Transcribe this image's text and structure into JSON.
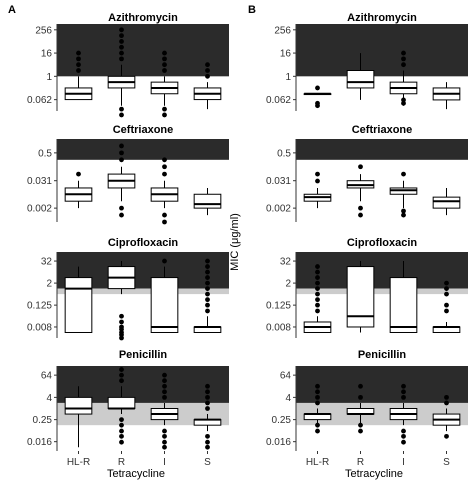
{
  "figure": {
    "ylabel": "MIC (μg/ml)",
    "xlabel": "Tetracycline",
    "panel_labels": [
      "A",
      "B"
    ],
    "colors": {
      "resistant_band": "#2b2b2b",
      "intermediate_band": "#cccccc",
      "box_fill": "#ffffff",
      "stroke": "#000000",
      "axis_text": "#333333"
    }
  },
  "chart_data": [
    {
      "panel": "A",
      "type": "box",
      "title": "Azithromycin",
      "scale": "log2",
      "ylim": [
        0.016,
        512
      ],
      "ticks": [
        256,
        16,
        1,
        0.062
      ],
      "tick_labels": [
        "256",
        "16",
        "1",
        "0.062"
      ],
      "resistant_min": 1,
      "intermediate_min": null,
      "categories": [
        "HL-R",
        "R",
        "I",
        "S"
      ],
      "boxes": [
        {
          "whisker_low": 0.0625,
          "q1": 0.0625,
          "median": 0.125,
          "q3": 0.25,
          "whisker_high": 1,
          "outliers": [
            2,
            4,
            8,
            16
          ]
        },
        {
          "whisker_low": 0.03,
          "q1": 0.25,
          "median": 0.5,
          "q3": 1,
          "whisker_high": 4,
          "outliers": [
            0.01,
            0.02,
            8,
            16,
            32,
            64,
            128,
            256
          ]
        },
        {
          "whisker_low": 0.03,
          "q1": 0.125,
          "median": 0.25,
          "q3": 0.5,
          "whisker_high": 1,
          "outliers": [
            0.01,
            0.02,
            2,
            4,
            8,
            16
          ]
        },
        {
          "whisker_low": 0.02,
          "q1": 0.0625,
          "median": 0.125,
          "q3": 0.25,
          "whisker_high": 0.5,
          "outliers": [
            1,
            2,
            4
          ]
        }
      ]
    },
    {
      "panel": "B",
      "type": "box",
      "title": "Azithromycin",
      "scale": "log2",
      "ylim": [
        0.016,
        512
      ],
      "ticks": [
        256,
        16,
        1,
        0.062
      ],
      "tick_labels": [
        "256",
        "16",
        "1",
        "0.062"
      ],
      "resistant_min": 1,
      "intermediate_min": null,
      "categories": [
        "HL-R",
        "R",
        "I",
        "S"
      ],
      "boxes": [
        {
          "whisker_low": 0.125,
          "q1": 0.125,
          "median": 0.125,
          "q3": 0.125,
          "whisker_high": 0.125,
          "outliers": [
            0.03,
            0.04,
            0.25
          ]
        },
        {
          "whisker_low": 0.06,
          "q1": 0.25,
          "median": 0.5,
          "q3": 2,
          "whisker_high": 16,
          "outliers": []
        },
        {
          "whisker_low": 0.03,
          "q1": 0.125,
          "median": 0.25,
          "q3": 0.5,
          "whisker_high": 2,
          "outliers": [
            0.04,
            0.06,
            4,
            8,
            16
          ]
        },
        {
          "whisker_low": 0.02,
          "q1": 0.06,
          "median": 0.125,
          "q3": 0.25,
          "whisker_high": 0.5,
          "outliers": []
        }
      ]
    },
    {
      "panel": "A",
      "type": "box",
      "title": "Ceftriaxone",
      "scale": "log2",
      "ylim": [
        0.0005,
        2
      ],
      "ticks": [
        0.5,
        0.031,
        0.002
      ],
      "tick_labels": [
        "0.5",
        "0.031",
        "0.002"
      ],
      "resistant_min": 0.25,
      "intermediate_min": null,
      "categories": [
        "HL-R",
        "R",
        "I",
        "S"
      ],
      "boxes": [
        {
          "whisker_low": 0.002,
          "q1": 0.004,
          "median": 0.008,
          "q3": 0.015,
          "whisker_high": 0.031,
          "outliers": [
            0.06
          ]
        },
        {
          "whisker_low": 0.004,
          "q1": 0.015,
          "median": 0.031,
          "q3": 0.06,
          "whisker_high": 0.125,
          "outliers": [
            0.001,
            0.002,
            0.25,
            0.5,
            1
          ]
        },
        {
          "whisker_low": 0.002,
          "q1": 0.004,
          "median": 0.008,
          "q3": 0.015,
          "whisker_high": 0.031,
          "outliers": [
            0.0005,
            0.001,
            0.06,
            0.125,
            0.25
          ]
        },
        {
          "whisker_low": 0.001,
          "q1": 0.002,
          "median": 0.003,
          "q3": 0.008,
          "whisker_high": 0.015,
          "outliers": []
        }
      ]
    },
    {
      "panel": "B",
      "type": "box",
      "title": "Ceftriaxone",
      "scale": "log2",
      "ylim": [
        0.0005,
        2
      ],
      "ticks": [
        0.5,
        0.031,
        0.002
      ],
      "tick_labels": [
        "0.5",
        "0.031",
        "0.002"
      ],
      "resistant_min": 0.25,
      "intermediate_min": null,
      "categories": [
        "HL-R",
        "R",
        "I",
        "S"
      ],
      "boxes": [
        {
          "whisker_low": 0.002,
          "q1": 0.004,
          "median": 0.006,
          "q3": 0.008,
          "whisker_high": 0.015,
          "outliers": [
            0.03,
            0.06
          ]
        },
        {
          "whisker_low": 0.004,
          "q1": 0.015,
          "median": 0.02,
          "q3": 0.031,
          "whisker_high": 0.06,
          "outliers": [
            0.001,
            0.002,
            0.125
          ]
        },
        {
          "whisker_low": 0.002,
          "q1": 0.008,
          "median": 0.012,
          "q3": 0.015,
          "whisker_high": 0.031,
          "outliers": [
            0.001,
            0.0015,
            0.06
          ]
        },
        {
          "whisker_low": 0.001,
          "q1": 0.002,
          "median": 0.004,
          "q3": 0.006,
          "whisker_high": 0.015,
          "outliers": []
        }
      ]
    },
    {
      "panel": "A",
      "type": "box",
      "title": "Ciprofloxacin",
      "scale": "log2",
      "ylim": [
        0.002,
        100
      ],
      "ticks": [
        32,
        2,
        0.125,
        0.008
      ],
      "tick_labels": [
        "32",
        "2",
        "0.125",
        "0.008"
      ],
      "resistant_min": 1,
      "intermediate_min": 0.5,
      "categories": [
        "HL-R",
        "R",
        "I",
        "S"
      ],
      "boxes": [
        {
          "whisker_low": 0.004,
          "q1": 0.004,
          "median": 1,
          "q3": 4,
          "whisker_high": 16,
          "outliers": []
        },
        {
          "whisker_low": 0.5,
          "q1": 1,
          "median": 4,
          "q3": 16,
          "whisker_high": 32,
          "outliers": [
            0.002,
            0.003,
            0.004,
            0.006,
            0.008,
            0.015,
            0.031
          ]
        },
        {
          "whisker_low": 0.004,
          "q1": 0.004,
          "median": 0.008,
          "q3": 4,
          "whisker_high": 16,
          "outliers": [
            32
          ]
        },
        {
          "whisker_low": 0.004,
          "q1": 0.004,
          "median": 0.008,
          "q3": 0.008,
          "whisker_high": 0.031,
          "outliers": [
            0.06,
            0.125,
            0.25,
            0.5,
            1,
            2,
            4,
            8,
            16,
            32
          ]
        }
      ]
    },
    {
      "panel": "B",
      "type": "box",
      "title": "Ciprofloxacin",
      "scale": "log2",
      "ylim": [
        0.002,
        100
      ],
      "ticks": [
        32,
        2,
        0.125,
        0.008
      ],
      "tick_labels": [
        "32",
        "2",
        "0.125",
        "0.008"
      ],
      "resistant_min": 1,
      "intermediate_min": 0.5,
      "categories": [
        "HL-R",
        "R",
        "I",
        "S"
      ],
      "boxes": [
        {
          "whisker_low": 0.004,
          "q1": 0.004,
          "median": 0.008,
          "q3": 0.015,
          "whisker_high": 0.031,
          "outliers": [
            0.06,
            0.125,
            0.25,
            0.5,
            1,
            2,
            4,
            8,
            16
          ]
        },
        {
          "whisker_low": 0.004,
          "q1": 0.008,
          "median": 0.031,
          "q3": 16,
          "whisker_high": 32,
          "outliers": []
        },
        {
          "whisker_low": 0.004,
          "q1": 0.004,
          "median": 0.008,
          "q3": 4,
          "whisker_high": 32,
          "outliers": []
        },
        {
          "whisker_low": 0.004,
          "q1": 0.004,
          "median": 0.008,
          "q3": 0.008,
          "whisker_high": 0.015,
          "outliers": [
            0.06,
            0.125,
            0.5,
            1,
            2
          ]
        }
      ]
    },
    {
      "panel": "A",
      "type": "box",
      "title": "Penicillin",
      "scale": "log2",
      "ylim": [
        0.005,
        200
      ],
      "ticks": [
        64,
        4,
        0.25,
        0.016
      ],
      "tick_labels": [
        "64",
        "4",
        "0.25",
        "0.016"
      ],
      "resistant_min": 2,
      "intermediate_min": 0.125,
      "categories": [
        "HL-R",
        "R",
        "I",
        "S"
      ],
      "boxes": [
        {
          "whisker_low": 0.008,
          "q1": 0.5,
          "median": 1,
          "q3": 4,
          "whisker_high": 16,
          "outliers": []
        },
        {
          "whisker_low": 0.5,
          "q1": 1,
          "median": 1,
          "q3": 4,
          "whisker_high": 16,
          "outliers": [
            0.015,
            0.031,
            0.06,
            0.125,
            0.25,
            32,
            64,
            128
          ]
        },
        {
          "whisker_low": 0.125,
          "q1": 0.25,
          "median": 0.5,
          "q3": 1,
          "whisker_high": 2,
          "outliers": [
            0.008,
            0.015,
            0.031,
            0.06,
            4,
            8,
            16,
            32,
            64
          ]
        },
        {
          "whisker_low": 0.06,
          "q1": 0.125,
          "median": 0.25,
          "q3": 0.25,
          "whisker_high": 0.5,
          "outliers": [
            0.008,
            0.015,
            0.031,
            1,
            2,
            4,
            8,
            16
          ]
        }
      ]
    },
    {
      "panel": "B",
      "type": "box",
      "title": "Penicillin",
      "scale": "log2",
      "ylim": [
        0.005,
        200
      ],
      "ticks": [
        64,
        4,
        0.25,
        0.016
      ],
      "tick_labels": [
        "64",
        "4",
        "0.25",
        "0.016"
      ],
      "resistant_min": 2,
      "intermediate_min": 0.125,
      "categories": [
        "HL-R",
        "R",
        "I",
        "S"
      ],
      "boxes": [
        {
          "whisker_low": 0.125,
          "q1": 0.25,
          "median": 0.5,
          "q3": 0.5,
          "whisker_high": 1,
          "outliers": [
            0.06,
            0.125,
            2,
            4,
            8,
            16
          ]
        },
        {
          "whisker_low": 0.125,
          "q1": 0.5,
          "median": 0.5,
          "q3": 1,
          "whisker_high": 2,
          "outliers": [
            0.06,
            0.125,
            4,
            16
          ]
        },
        {
          "whisker_low": 0.125,
          "q1": 0.25,
          "median": 0.5,
          "q3": 1,
          "whisker_high": 2,
          "outliers": [
            0.015,
            0.031,
            0.06,
            4,
            8,
            16
          ]
        },
        {
          "whisker_low": 0.06,
          "q1": 0.125,
          "median": 0.25,
          "q3": 0.5,
          "whisker_high": 1,
          "outliers": [
            0.031,
            2,
            4
          ]
        }
      ]
    }
  ]
}
